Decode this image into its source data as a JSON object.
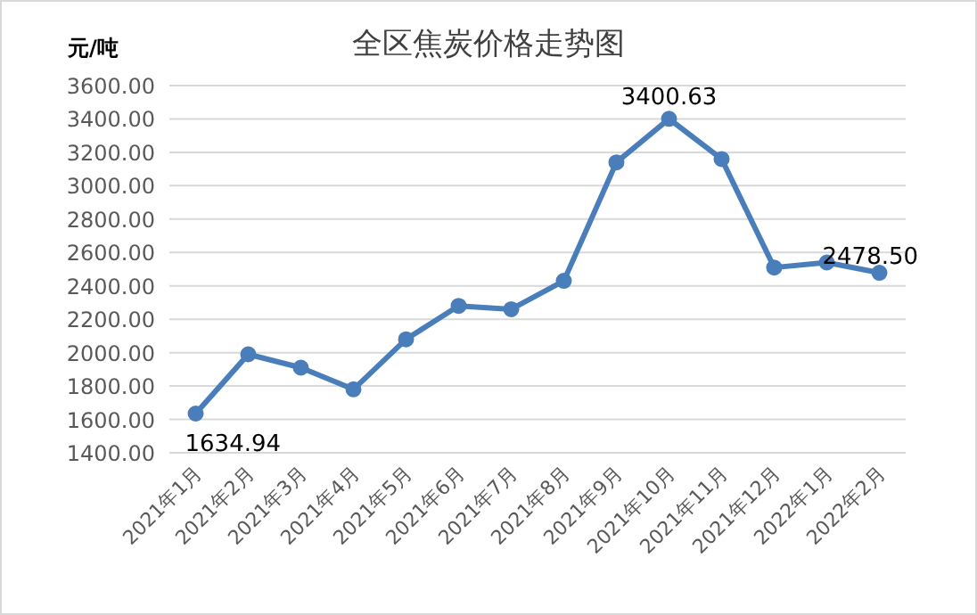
{
  "chart_data": {
    "type": "line",
    "title": "全区焦炭价格走势图",
    "ylabel": "元/吨",
    "categories": [
      "2021年1月",
      "2021年2月",
      "2021年3月",
      "2021年4月",
      "2021年5月",
      "2021年6月",
      "2021年7月",
      "2021年8月",
      "2021年9月",
      "2021年10月",
      "2021年11月",
      "2021年12月",
      "2022年1月",
      "2022年2月"
    ],
    "series": [
      {
        "color": "#4a7ebb",
        "values": [
          1634.94,
          1990,
          1910,
          1780,
          2080,
          2280,
          2260,
          2430,
          3140,
          3400.63,
          3160,
          2510,
          2540,
          2478.5
        ],
        "value_labels": [
          "1634.94",
          null,
          null,
          null,
          null,
          null,
          null,
          null,
          null,
          "3400.63",
          null,
          null,
          null,
          "2478.50"
        ]
      }
    ],
    "ylim": [
      1400,
      3600
    ],
    "yticks": [
      {
        "value": 1400,
        "label": "1400.00"
      },
      {
        "value": 1600,
        "label": "1600.00"
      },
      {
        "value": 1800,
        "label": "1800.00"
      },
      {
        "value": 2000,
        "label": "2000.00"
      },
      {
        "value": 2200,
        "label": "2200.00"
      },
      {
        "value": 2400,
        "label": "2400.00"
      },
      {
        "value": 2600,
        "label": "2600.00"
      },
      {
        "value": 2800,
        "label": "2800.00"
      },
      {
        "value": 3000,
        "label": "3000.00"
      },
      {
        "value": 3200,
        "label": "3200.00"
      },
      {
        "value": 3400,
        "label": "3400.00"
      },
      {
        "value": 3600,
        "label": "3600.00"
      }
    ],
    "grid": "y",
    "marker": "circle",
    "line_style": "solid"
  }
}
